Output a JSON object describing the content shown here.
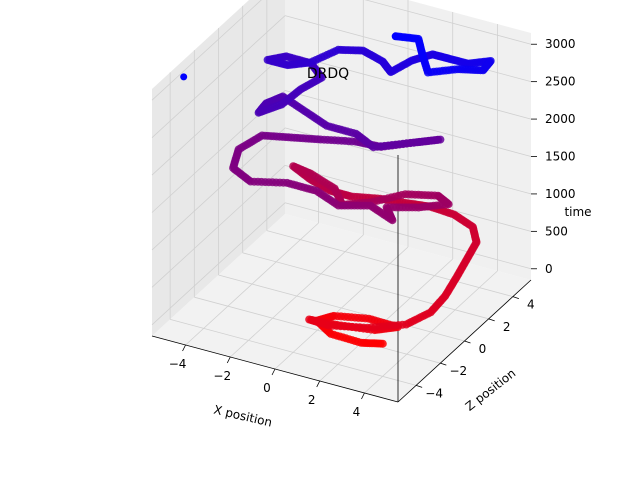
{
  "chart_data": {
    "type": "scatter",
    "projection": "3d",
    "title": "DRDQ",
    "xlabel": "X position",
    "ylabel": "Z position",
    "zlabel": "time",
    "xlim": [
      -5.5,
      5.5
    ],
    "ylim": [
      -5.5,
      5.5
    ],
    "zlim": [
      -150,
      3150
    ],
    "x_ticks": [
      -4,
      -2,
      0,
      2,
      4
    ],
    "x_tick_labels": [
      "−4",
      "−2",
      "0",
      "2",
      "4"
    ],
    "y_ticks": [
      -4,
      -2,
      0,
      2,
      4
    ],
    "y_tick_labels": [
      "−4",
      "−2",
      "0",
      "2",
      "4"
    ],
    "z_ticks": [
      0,
      500,
      1000,
      1500,
      2000,
      2500,
      3000
    ],
    "z_tick_labels": [
      "0",
      "500",
      "1000",
      "1500",
      "2000",
      "2500",
      "3000"
    ],
    "grid": true,
    "legend": "none",
    "color_mapping": "time: red (early) to blue (late)",
    "color_early": "#ff0000",
    "color_late": "#0000ff",
    "series": [
      {
        "points": [
          [
            3.2,
            -2.5,
            0
          ],
          [
            2.5,
            -3.0,
            30
          ],
          [
            1.2,
            -3.1,
            60
          ],
          [
            0.3,
            -2.6,
            90
          ],
          [
            0.8,
            -2.1,
            120
          ],
          [
            2.2,
            -1.8,
            150
          ],
          [
            3.6,
            -2.0,
            180
          ],
          [
            3.0,
            -2.8,
            210
          ],
          [
            1.6,
            -3.3,
            240
          ],
          [
            0.5,
            -3.6,
            270
          ],
          [
            1.5,
            -3.8,
            300
          ],
          [
            3.0,
            -3.4,
            330
          ],
          [
            4.3,
            -2.6,
            360
          ],
          [
            4.8,
            -1.5,
            400
          ],
          [
            4.8,
            -0.3,
            440
          ],
          [
            4.6,
            1.0,
            480
          ],
          [
            4.4,
            2.2,
            520
          ],
          [
            4.2,
            3.4,
            560
          ],
          [
            3.6,
            4.2,
            600
          ],
          [
            2.6,
            4.5,
            640
          ],
          [
            1.6,
            4.4,
            680
          ],
          [
            0.8,
            4.0,
            720
          ],
          [
            -0.2,
            3.6,
            760
          ],
          [
            -1.2,
            3.0,
            800
          ],
          [
            -2.0,
            2.8,
            840
          ],
          [
            -3.0,
            3.0,
            880
          ],
          [
            -4.0,
            3.4,
            920
          ],
          [
            -3.0,
            3.0,
            960
          ],
          [
            -1.5,
            2.2,
            1000
          ],
          [
            -0.5,
            1.0,
            1040
          ],
          [
            0.5,
            1.5,
            1080
          ],
          [
            1.5,
            2.5,
            1120
          ],
          [
            2.8,
            2.8,
            1160
          ],
          [
            3.6,
            2.2,
            1200
          ],
          [
            2.8,
            1.2,
            1240
          ],
          [
            1.8,
            0.4,
            1280
          ],
          [
            2.6,
            -0.6,
            1320
          ],
          [
            1.4,
            -0.2,
            1360
          ],
          [
            0.4,
            -1.0,
            1400
          ],
          [
            -0.8,
            -0.6,
            1440
          ],
          [
            -2.0,
            -0.8,
            1480
          ],
          [
            -3.2,
            -1.6,
            1520
          ],
          [
            -4.2,
            -1.2,
            1560
          ],
          [
            -4.6,
            0.0,
            1600
          ],
          [
            -4.2,
            1.2,
            1640
          ],
          [
            -3.0,
            1.4,
            1680
          ],
          [
            -1.8,
            1.6,
            1720
          ],
          [
            -0.4,
            1.9,
            1760
          ],
          [
            0.8,
            1.8,
            1800
          ],
          [
            2.0,
            2.6,
            1840
          ],
          [
            2.8,
            3.0,
            1880
          ],
          [
            2.0,
            2.0,
            1920
          ],
          [
            1.0,
            0.8,
            1960
          ],
          [
            0.0,
            1.2,
            2000
          ],
          [
            -1.2,
            1.0,
            2040
          ],
          [
            -2.4,
            1.4,
            2080
          ],
          [
            -3.6,
            1.8,
            2120
          ],
          [
            -3.8,
            0.8,
            2160
          ],
          [
            -3.6,
            -0.2,
            2200
          ],
          [
            -3.0,
            0.6,
            2240
          ],
          [
            -2.8,
            1.8,
            2280
          ],
          [
            -2.4,
            2.8,
            2320
          ],
          [
            -3.2,
            3.4,
            2360
          ],
          [
            -4.2,
            3.2,
            2400
          ],
          [
            -4.6,
            2.4,
            2440
          ],
          [
            -3.6,
            2.2,
            2480
          ],
          [
            -2.8,
            2.6,
            2520
          ],
          [
            -2.2,
            3.8,
            2560
          ],
          [
            -1.2,
            4.0,
            2600
          ],
          [
            0.0,
            3.4,
            2640
          ],
          [
            0.8,
            2.6,
            2680
          ],
          [
            1.2,
            3.6,
            2720
          ],
          [
            1.8,
            4.2,
            2760
          ],
          [
            2.6,
            4.0,
            2800
          ],
          [
            3.6,
            3.8,
            2840
          ],
          [
            4.4,
            4.2,
            2880
          ],
          [
            4.6,
            3.2,
            2920
          ],
          [
            3.8,
            2.6,
            2960
          ],
          [
            3.0,
            1.6,
            3000
          ],
          [
            2.2,
            2.6,
            3040
          ],
          [
            1.6,
            3.4,
            3070
          ],
          [
            0.8,
            3.0,
            3100
          ],
          [
            -5.0,
            -3.8,
            3100
          ]
        ]
      }
    ]
  }
}
